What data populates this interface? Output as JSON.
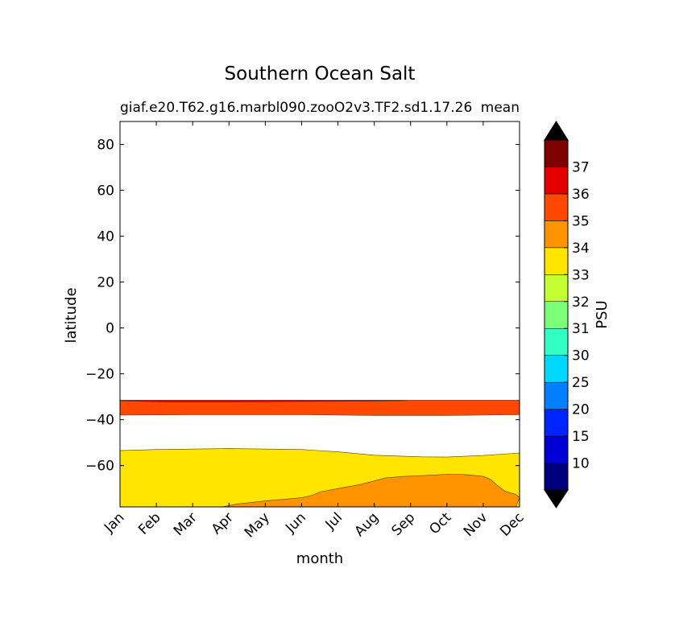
{
  "chart_data": {
    "type": "contourf",
    "title": "Southern Ocean Salt",
    "subtitle_left": "giaf.e20.T62.g16.marbl090.zooO2v3.TF2.sd1.17.26",
    "subtitle_right": "mean",
    "xlabel": "month",
    "ylabel": "latitude",
    "x_ticks": [
      "Jan",
      "Feb",
      "Mar",
      "Apr",
      "May",
      "Jun",
      "Jul",
      "Aug",
      "Sep",
      "Oct",
      "Nov",
      "Dec"
    ],
    "ylim": [
      -78,
      90
    ],
    "y_ticks": [
      80,
      60,
      40,
      20,
      0,
      -20,
      -40,
      -60
    ],
    "y_tick_labels": [
      "80",
      "60",
      "40",
      "20",
      "0",
      "−20",
      "−40",
      "−60"
    ],
    "colorbar": {
      "label": "PSU",
      "levels": [
        10,
        15,
        20,
        25,
        30,
        31,
        32,
        33,
        34,
        35,
        36,
        37
      ],
      "level_labels": [
        "10",
        "15",
        "20",
        "25",
        "30",
        "31",
        "32",
        "33",
        "34",
        "35",
        "36",
        "37"
      ],
      "colors": [
        "#00007f",
        "#0000d5",
        "#0024ff",
        "#0080ff",
        "#00d8ff",
        "#33ffc4",
        "#7cff79",
        "#c4ff33",
        "#ffe500",
        "#ff9400",
        "#ff4800",
        "#e50000",
        "#7f0000"
      ],
      "extend": "both",
      "extend_color": "#000000"
    },
    "regions": [
      {
        "level": "35-36",
        "color": "#ff4800",
        "boundary_points": [
          [
            0,
            -31.5
          ],
          [
            8.3,
            -31.5
          ],
          [
            11,
            -31.5
          ],
          [
            11,
            -37.8
          ],
          [
            9,
            -38.2
          ],
          [
            8.3,
            -38.2
          ],
          [
            7,
            -38.2
          ],
          [
            5,
            -37.8
          ],
          [
            4,
            -37.8
          ],
          [
            2,
            -37.8
          ],
          [
            0,
            -38
          ]
        ]
      },
      {
        "level": "36-37",
        "color": "#e50000",
        "boundary_points": [
          [
            0,
            -31.8
          ],
          [
            0.5,
            -32
          ],
          [
            1.3,
            -32.3
          ],
          [
            3,
            -32.3
          ],
          [
            5,
            -32.1
          ],
          [
            6.3,
            -32
          ],
          [
            7.6,
            -31.8
          ],
          [
            7.9,
            -31.6
          ],
          [
            0,
            -31.6
          ]
        ]
      },
      {
        "level": "33-34",
        "color": "#ffe500",
        "boundary_points": [
          [
            0,
            -53.5
          ],
          [
            1,
            -53
          ],
          [
            3,
            -52.6
          ],
          [
            5,
            -53
          ],
          [
            6,
            -54
          ],
          [
            7,
            -55.5
          ],
          [
            8.3,
            -56.2
          ],
          [
            9,
            -56.3
          ],
          [
            10,
            -55.6
          ],
          [
            11,
            -54.5
          ],
          [
            11,
            -78
          ],
          [
            0,
            -78
          ]
        ]
      },
      {
        "level": "34-35",
        "color": "#ff9400",
        "boundary_points": [
          [
            2.8,
            -78
          ],
          [
            3.2,
            -76.8
          ],
          [
            4,
            -75.4
          ],
          [
            5,
            -74
          ],
          [
            5.3,
            -72.9
          ],
          [
            5.5,
            -71.5
          ],
          [
            6,
            -70
          ],
          [
            6.6,
            -68.3
          ],
          [
            6.9,
            -67.1
          ],
          [
            7.3,
            -65.4
          ],
          [
            7.8,
            -64.7
          ],
          [
            8.3,
            -64.4
          ],
          [
            9,
            -63.8
          ],
          [
            9.5,
            -63.9
          ],
          [
            10,
            -64.7
          ],
          [
            10.2,
            -66
          ],
          [
            10.4,
            -68.8
          ],
          [
            10.6,
            -71.2
          ],
          [
            10.9,
            -72.6
          ],
          [
            11,
            -74
          ],
          [
            10.9,
            -78
          ]
        ]
      }
    ]
  }
}
